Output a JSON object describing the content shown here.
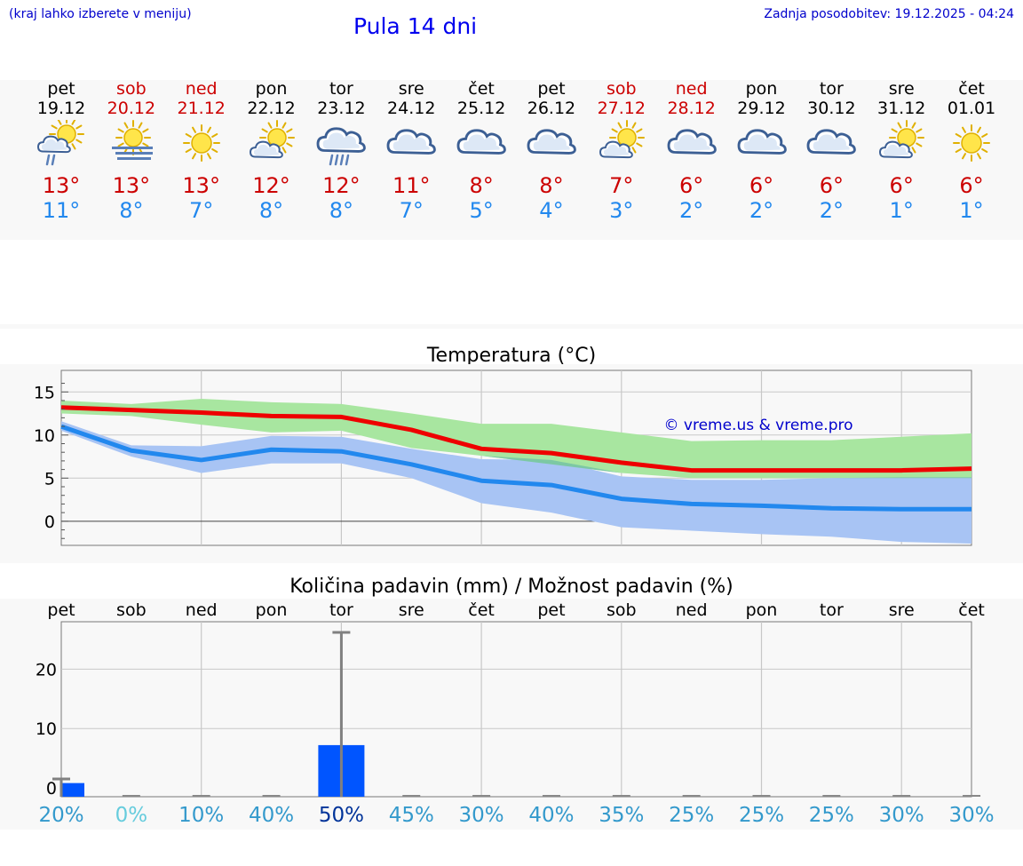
{
  "header": {
    "hint": "(kraj lahko izberete v meniju)",
    "title": "Pula 14 dni",
    "updated": "Zadnja posodobitev: 19.12.2025 - 04:24"
  },
  "days": [
    {
      "name": "pet",
      "date": "19.12",
      "max": "13°",
      "min": "11°",
      "icon": "sun-cloud-rain-icon",
      "weekend": false
    },
    {
      "name": "sob",
      "date": "20.12",
      "max": "13°",
      "min": "8°",
      "icon": "sun-fog-icon",
      "weekend": true
    },
    {
      "name": "ned",
      "date": "21.12",
      "max": "13°",
      "min": "7°",
      "icon": "sun-icon",
      "weekend": true
    },
    {
      "name": "pon",
      "date": "22.12",
      "max": "12°",
      "min": "8°",
      "icon": "sun-cloud-icon",
      "weekend": false
    },
    {
      "name": "tor",
      "date": "23.12",
      "max": "12°",
      "min": "8°",
      "icon": "cloud-rain-icon",
      "weekend": false
    },
    {
      "name": "sre",
      "date": "24.12",
      "max": "11°",
      "min": "7°",
      "icon": "cloudy-icon",
      "weekend": false
    },
    {
      "name": "čet",
      "date": "25.12",
      "max": "8°",
      "min": "5°",
      "icon": "cloudy-icon",
      "weekend": false
    },
    {
      "name": "pet",
      "date": "26.12",
      "max": "8°",
      "min": "4°",
      "icon": "cloudy-icon",
      "weekend": false
    },
    {
      "name": "sob",
      "date": "27.12",
      "max": "7°",
      "min": "3°",
      "icon": "sun-cloud-icon",
      "weekend": true
    },
    {
      "name": "ned",
      "date": "28.12",
      "max": "6°",
      "min": "2°",
      "icon": "cloudy-icon",
      "weekend": true
    },
    {
      "name": "pon",
      "date": "29.12",
      "max": "6°",
      "min": "2°",
      "icon": "cloudy-icon",
      "weekend": false
    },
    {
      "name": "tor",
      "date": "30.12",
      "max": "6°",
      "min": "2°",
      "icon": "cloudy-icon",
      "weekend": false
    },
    {
      "name": "sre",
      "date": "31.12",
      "max": "6°",
      "min": "1°",
      "icon": "sun-cloud-icon",
      "weekend": false
    },
    {
      "name": "čet",
      "date": "01.01",
      "max": "6°",
      "min": "1°",
      "icon": "sun-icon",
      "weekend": false
    }
  ],
  "colors": {
    "max": "#ee0000",
    "min": "#2288ee",
    "max_band": "#a8e6a0",
    "min_band": "#a8c4f4",
    "overlap_band": "#7cc8a4",
    "bar": "#0055ff",
    "whisker": "#808080"
  },
  "chart_data": [
    {
      "type": "line",
      "title": "Temperatura (°C)",
      "watermark": "© vreme.us & vreme.pro",
      "x": [
        0,
        1,
        2,
        3,
        4,
        5,
        6,
        7,
        8,
        9,
        10,
        11,
        12,
        13
      ],
      "ylim": [
        -2.8,
        17.5
      ],
      "yticks": [
        0,
        5,
        10,
        15
      ],
      "series": [
        {
          "name": "max",
          "values": [
            13.2,
            12.9,
            12.6,
            12.2,
            12.1,
            10.6,
            8.4,
            7.9,
            6.8,
            5.9,
            5.9,
            5.9,
            5.9,
            6.1
          ],
          "band_low": [
            12.5,
            12.2,
            11.2,
            10.3,
            10.5,
            8.5,
            7.6,
            6.6,
            5.6,
            5.0,
            5.0,
            5.0,
            5.0,
            5.0
          ],
          "band_high": [
            14.0,
            13.6,
            14.2,
            13.8,
            13.6,
            12.5,
            11.3,
            11.3,
            10.3,
            9.3,
            9.4,
            9.4,
            9.8,
            10.2
          ]
        },
        {
          "name": "min",
          "values": [
            11.0,
            8.2,
            7.1,
            8.3,
            8.1,
            6.6,
            4.7,
            4.2,
            2.6,
            2.0,
            1.8,
            1.5,
            1.4,
            1.4
          ],
          "band_low": [
            10.5,
            7.5,
            5.6,
            6.7,
            6.7,
            5.0,
            2.1,
            1.0,
            -0.7,
            -1.1,
            -1.5,
            -1.8,
            -2.4,
            -2.6
          ],
          "band_high": [
            11.6,
            8.8,
            8.7,
            9.9,
            9.8,
            8.4,
            7.2,
            7.1,
            5.2,
            4.8,
            4.8,
            5.0,
            5.1,
            5.1
          ]
        }
      ]
    },
    {
      "type": "bar",
      "title": "Količina padavin (mm) / Možnost padavin (%)",
      "categories": [
        "pet",
        "sob",
        "ned",
        "pon",
        "tor",
        "sre",
        "čet",
        "pet",
        "sob",
        "ned",
        "pon",
        "tor",
        "sre",
        "čet"
      ],
      "values": [
        0.8,
        0,
        0,
        0,
        7.2,
        0,
        0,
        0,
        0,
        0,
        0,
        0,
        0,
        0
      ],
      "whisker_max": [
        1.5,
        0,
        0,
        0,
        26.2,
        0,
        0,
        0,
        0,
        0,
        0,
        0,
        0,
        0
      ],
      "ylim": [
        -1.5,
        28
      ],
      "yticks": [
        0,
        10,
        20
      ],
      "probability": [
        "20%",
        "0%",
        "10%",
        "40%",
        "50%",
        "45%",
        "30%",
        "40%",
        "35%",
        "25%",
        "25%",
        "25%",
        "30%",
        "30%"
      ],
      "probability_colors": [
        "#3399cc",
        "#66ccdd",
        "#3399cc",
        "#3399cc",
        "#003399",
        "#3399cc",
        "#3399cc",
        "#3399cc",
        "#3399cc",
        "#3399cc",
        "#3399cc",
        "#3399cc",
        "#3399cc",
        "#3399cc"
      ]
    }
  ]
}
